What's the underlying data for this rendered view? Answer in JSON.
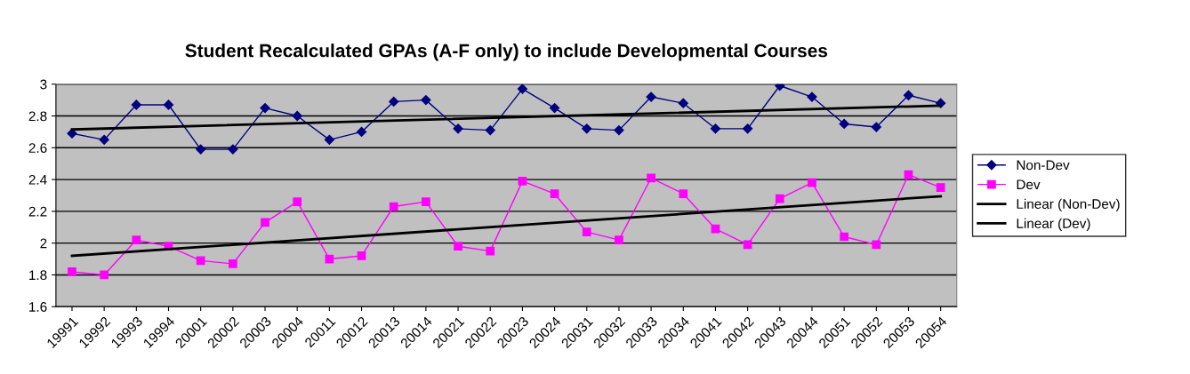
{
  "chart_data": {
    "type": "line",
    "title": "Student Recalculated GPAs (A-F only) to include Developmental Courses",
    "categories": [
      "19991",
      "19992",
      "19993",
      "19994",
      "20001",
      "20002",
      "20003",
      "20004",
      "20011",
      "20012",
      "20013",
      "20014",
      "20021",
      "20022",
      "20023",
      "20024",
      "20031",
      "20032",
      "20033",
      "20034",
      "20041",
      "20042",
      "20043",
      "20044",
      "20051",
      "20052",
      "20053",
      "20054"
    ],
    "series": [
      {
        "name": "Non-Dev",
        "color": "#000080",
        "marker": "diamond",
        "values": [
          2.69,
          2.65,
          2.87,
          2.87,
          2.59,
          2.59,
          2.85,
          2.8,
          2.65,
          2.7,
          2.89,
          2.9,
          2.72,
          2.71,
          2.97,
          2.85,
          2.72,
          2.71,
          2.92,
          2.88,
          2.72,
          2.72,
          2.99,
          2.92,
          2.75,
          2.73,
          2.93,
          2.88
        ]
      },
      {
        "name": "Dev",
        "color": "#ff00ff",
        "marker": "square",
        "values": [
          1.82,
          1.8,
          2.02,
          1.98,
          1.89,
          1.87,
          2.13,
          2.26,
          1.9,
          1.92,
          2.23,
          2.26,
          1.98,
          1.95,
          2.39,
          2.31,
          2.07,
          2.02,
          2.41,
          2.31,
          2.09,
          1.99,
          2.28,
          2.38,
          2.04,
          1.99,
          2.43,
          2.35
        ]
      },
      {
        "name": "Linear (Non-Dev)",
        "color": "#000000",
        "marker": "none",
        "x": [
          "19991",
          "20054"
        ],
        "values": [
          2.715,
          2.865
        ]
      },
      {
        "name": "Linear (Dev)",
        "color": "#000000",
        "marker": "none",
        "x": [
          "19991",
          "20054"
        ],
        "values": [
          1.92,
          2.295
        ]
      }
    ],
    "ylim": [
      1.6,
      3
    ],
    "yticks": [
      1.6,
      1.8,
      2,
      2.2,
      2.4,
      2.6,
      2.8,
      3
    ],
    "grid": "y",
    "legend": "right"
  }
}
